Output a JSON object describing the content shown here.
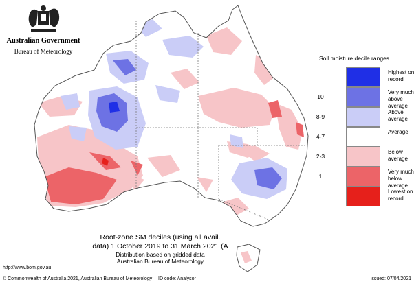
{
  "header": {
    "government": "Australian Government",
    "bureau": "Bureau of Meteorology"
  },
  "legend": {
    "title": "Soil moisture decile ranges",
    "items": [
      {
        "rank": "",
        "label_lines": [
          "Highest on",
          "record"
        ],
        "color": "#1f2fe6"
      },
      {
        "rank": "10",
        "label_lines": [
          "Very much",
          "above average"
        ],
        "color": "#6d72e4"
      },
      {
        "rank": "8-9",
        "label_lines": [
          "Above average",
          ""
        ],
        "color": "#cacdf7"
      },
      {
        "rank": "4-7",
        "label_lines": [
          "Average",
          ""
        ],
        "color": "#ffffff"
      },
      {
        "rank": "2-3",
        "label_lines": [
          "Below average",
          ""
        ],
        "color": "#f7c5c8"
      },
      {
        "rank": "1",
        "label_lines": [
          "Very much",
          "below average"
        ],
        "color": "#ec6468"
      },
      {
        "rank": "",
        "label_lines": [
          "Lowest on",
          "record"
        ],
        "color": "#e6201b"
      }
    ]
  },
  "caption": {
    "line1": "Root-zone SM deciles (using all avail.",
    "line2": "data) 1 October 2019 to 31 March 2021 (A",
    "line3": "Distribution based on gridded data",
    "line4": "Australian Bureau of Meteorology"
  },
  "url": "http://www.bom.gov.au",
  "footer": {
    "copyright": "© Commonwealth of Australia 2021, Australian Bureau of Meteorology",
    "id_code": "ID code: Analysor",
    "issued": "Issued: 07/04/2021"
  },
  "map_colors": {
    "land": "#ffffff",
    "coast": "#555555",
    "state_border": "#777777",
    "above": "#cacdf7",
    "very_above": "#6d72e4",
    "highest": "#1f2fe6",
    "below": "#f7c5c8",
    "very_below": "#ec6468",
    "lowest": "#e6201b"
  }
}
